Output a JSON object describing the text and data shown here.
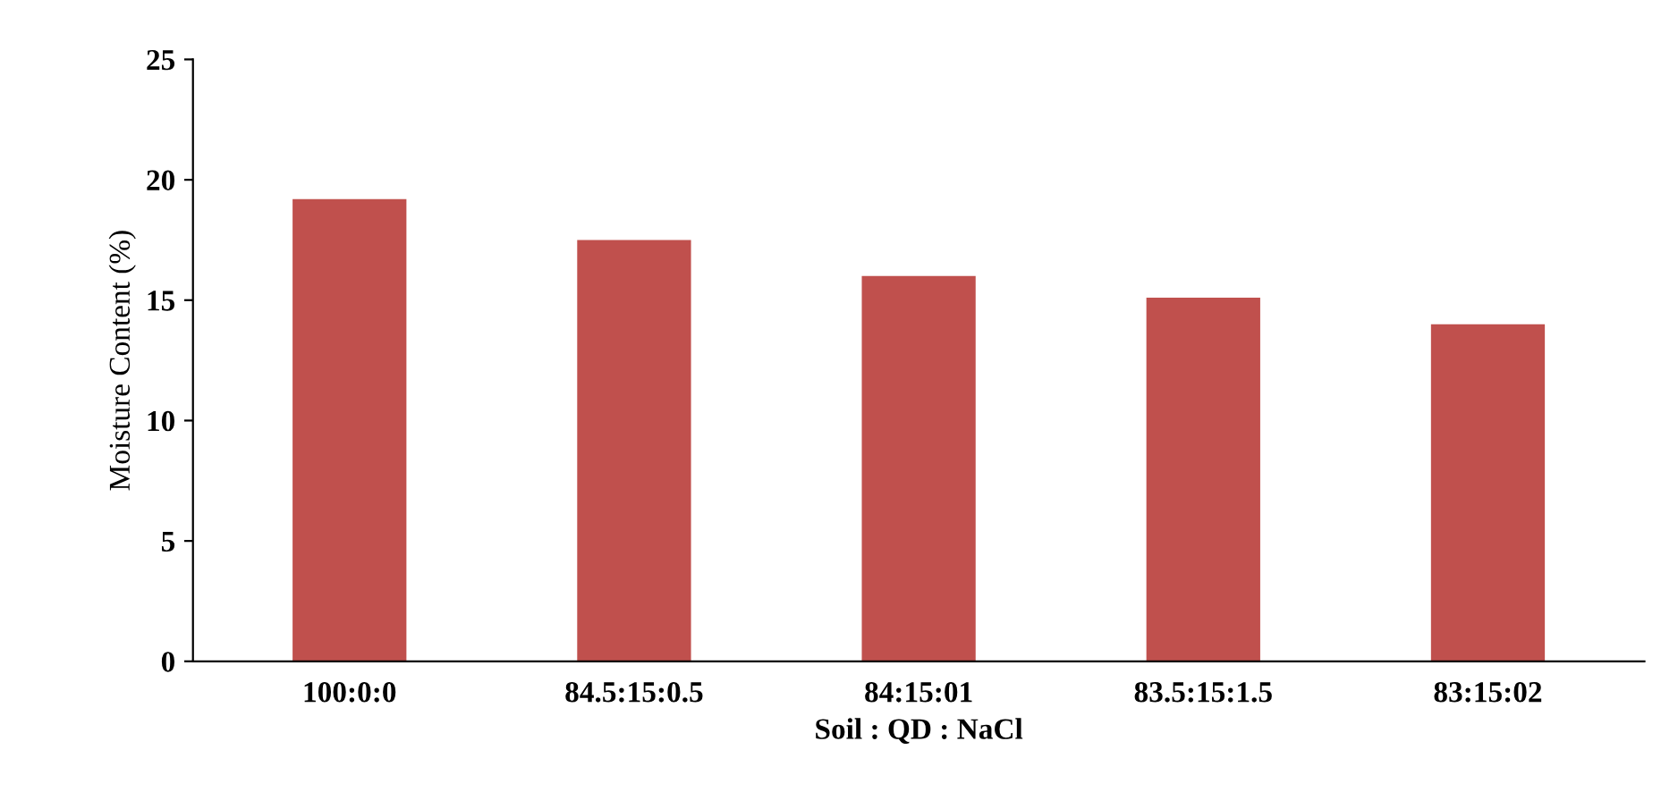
{
  "chart_data": {
    "type": "bar",
    "xlabel": "Soil : QD : NaCl",
    "ylabel": "Moisture Content (%)",
    "categories": [
      "100:0:0",
      "84.5:15:0.5",
      "84:15:01",
      "83.5:15:1.5",
      "83:15:02"
    ],
    "values": [
      19.2,
      17.5,
      16.0,
      15.1,
      14.0
    ],
    "color": "#c0504d",
    "ylim": [
      0,
      25
    ],
    "yticks": [
      0,
      5,
      10,
      15,
      20,
      25
    ],
    "grid": false,
    "legend": false
  }
}
